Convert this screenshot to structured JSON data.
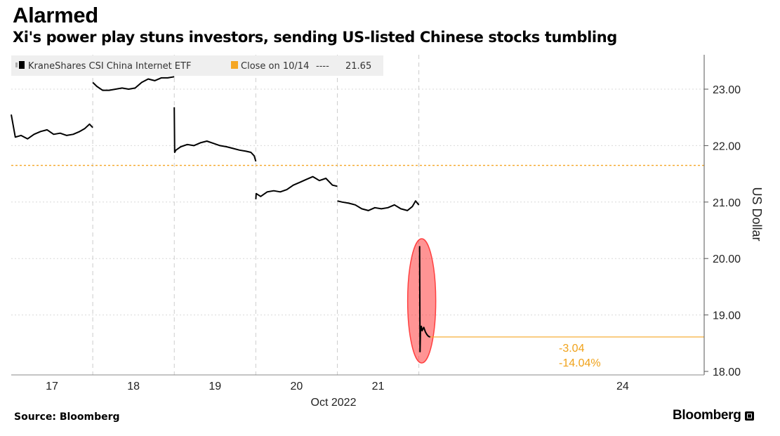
{
  "header": {
    "title": "Alarmed",
    "subtitle": "Xi's power play stuns investors, sending US-listed Chinese stocks tumbling"
  },
  "footer": {
    "source": "Source: Bloomberg",
    "brand": "Bloomberg"
  },
  "colors": {
    "series": "#000000",
    "reference": "#f5a623",
    "highlight": "#ff3b3b",
    "annotation": "#f0a21a",
    "grid": "#d9d9d9"
  },
  "chart_data": {
    "type": "line",
    "legend_position": "top-left",
    "grid": true,
    "xlabel": "Oct 2022",
    "ylabel": "US Dollar",
    "ylim": [
      18.0,
      23.5
    ],
    "y_axis_side": "right",
    "yticks": [
      18.0,
      19.0,
      20.0,
      21.0,
      22.0,
      23.0
    ],
    "ytick_labels": [
      "18.00",
      "19.00",
      "20.00",
      "21.00",
      "22.00",
      "23.00"
    ],
    "xlim": [
      16.5,
      25.0
    ],
    "xticks": [
      17,
      18,
      19,
      20,
      21,
      24
    ],
    "xtick_labels": [
      "17",
      "18",
      "19",
      "20",
      "21",
      "24"
    ],
    "session_breaks": [
      17.5,
      18.5,
      19.5,
      20.5,
      21.5
    ],
    "series": [
      {
        "name": "KraneShares CSI China Internet ETF",
        "sessions": [
          {
            "x": [
              16.5,
              16.55,
              16.62,
              16.7,
              16.78,
              16.86,
              16.94,
              17.02,
              17.1,
              17.18,
              17.26,
              17.34,
              17.4,
              17.46,
              17.5
            ],
            "y": [
              22.55,
              22.15,
              22.18,
              22.12,
              22.2,
              22.25,
              22.28,
              22.2,
              22.22,
              22.18,
              22.2,
              22.25,
              22.3,
              22.38,
              22.32
            ]
          },
          {
            "x": [
              17.5,
              17.55,
              17.62,
              17.7,
              17.78,
              17.86,
              17.94,
              18.02,
              18.1,
              18.18,
              18.26,
              18.34,
              18.42,
              18.5
            ],
            "y": [
              23.12,
              23.05,
              22.98,
              22.98,
              23.0,
              23.02,
              23.0,
              23.02,
              23.12,
              23.18,
              23.15,
              23.2,
              23.2,
              23.22
            ]
          },
          {
            "x": [
              18.5,
              18.505,
              18.52,
              18.58,
              18.66,
              18.74,
              18.82,
              18.9,
              18.98,
              19.06,
              19.14,
              19.22,
              19.3,
              19.38,
              19.44,
              19.48,
              19.5
            ],
            "y": [
              22.68,
              21.88,
              21.92,
              21.98,
              22.02,
              22.0,
              22.05,
              22.08,
              22.04,
              22.0,
              21.98,
              21.95,
              21.92,
              21.9,
              21.88,
              21.82,
              21.72
            ]
          },
          {
            "x": [
              19.5,
              19.505,
              19.56,
              19.64,
              19.72,
              19.8,
              19.88,
              19.96,
              20.04,
              20.12,
              20.2,
              20.28,
              20.36,
              20.44,
              20.5
            ],
            "y": [
              21.05,
              21.15,
              21.1,
              21.18,
              21.2,
              21.18,
              21.22,
              21.3,
              21.35,
              21.4,
              21.45,
              21.38,
              21.42,
              21.3,
              21.28
            ]
          },
          {
            "x": [
              20.5,
              20.56,
              20.64,
              20.72,
              20.8,
              20.88,
              20.96,
              21.04,
              21.12,
              21.2,
              21.28,
              21.36,
              21.42,
              21.46,
              21.5
            ],
            "y": [
              21.02,
              21.0,
              20.98,
              20.95,
              20.88,
              20.85,
              20.9,
              20.88,
              20.9,
              20.95,
              20.88,
              20.85,
              20.92,
              21.02,
              20.95
            ]
          },
          {
            "x": [
              21.51,
              21.515,
              21.52,
              21.53,
              21.54,
              21.56,
              21.58,
              21.6,
              21.62,
              21.64
            ],
            "y": [
              20.22,
              18.35,
              18.72,
              18.8,
              18.72,
              18.78,
              18.7,
              18.65,
              18.62,
              18.61
            ]
          }
        ]
      }
    ],
    "reference_lines": [
      {
        "label": "Close on 10/14",
        "value": 21.65,
        "value_label": "21.65"
      }
    ],
    "last_value": 18.61,
    "annotations": [
      {
        "text": "-3.04"
      },
      {
        "text": "-14.04%"
      }
    ]
  }
}
